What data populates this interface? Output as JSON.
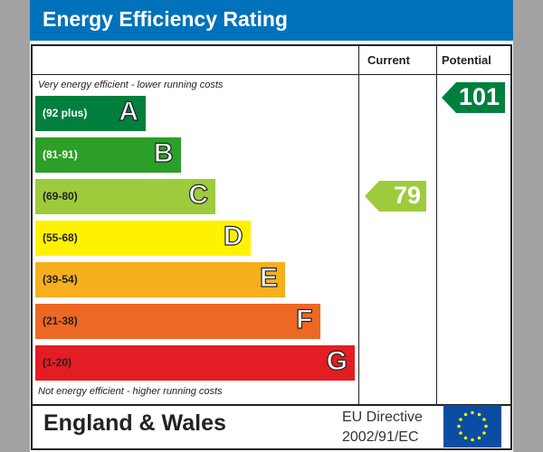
{
  "title": "Energy Efficiency Rating",
  "chart_data": {
    "type": "bar",
    "columns": [
      "Current",
      "Potential"
    ],
    "top_note": "Very energy efficient - lower running costs",
    "bottom_note": "Not energy efficient - higher running costs",
    "bands": [
      {
        "letter": "A",
        "range": "(92 plus)",
        "color": "#007f3d",
        "text_color": "#ffffff"
      },
      {
        "letter": "B",
        "range": "(81-91)",
        "color": "#2c9f29",
        "text_color": "#ffffff"
      },
      {
        "letter": "C",
        "range": "(69-80)",
        "color": "#9dcb3c",
        "text_color": "#222222"
      },
      {
        "letter": "D",
        "range": "(55-68)",
        "color": "#fff200",
        "text_color": "#222222"
      },
      {
        "letter": "E",
        "range": "(39-54)",
        "color": "#f7af1d",
        "text_color": "#222222"
      },
      {
        "letter": "F",
        "range": "(21-38)",
        "color": "#ed6823",
        "text_color": "#222222"
      },
      {
        "letter": "G",
        "range": "(1-20)",
        "color": "#e31d23",
        "text_color": "#222222"
      }
    ],
    "current": {
      "value": "79",
      "band": "C",
      "color": "#9dcb3c"
    },
    "potential": {
      "value": "101",
      "band": "A",
      "color": "#007f3d"
    }
  },
  "footer": {
    "region": "England & Wales",
    "directive_line1": "EU Directive",
    "directive_line2": "2002/91/EC",
    "flag": "eu-flag"
  }
}
